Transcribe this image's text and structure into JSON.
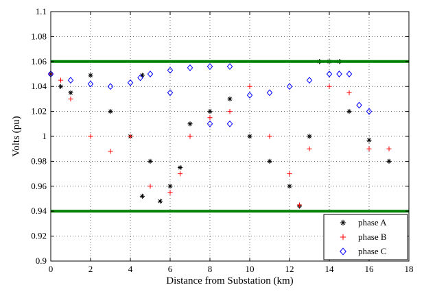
{
  "chart_data": {
    "type": "scatter",
    "title": "",
    "xlabel": "Distance from Substation (km)",
    "ylabel": "Volts (pu)",
    "xlim": [
      0,
      18
    ],
    "ylim": [
      0.9,
      1.1
    ],
    "xticks": [
      0,
      2,
      4,
      6,
      8,
      10,
      12,
      14,
      16,
      18
    ],
    "yticks": [
      0.9,
      0.92,
      0.94,
      0.96,
      0.98,
      1.0,
      1.02,
      1.04,
      1.06,
      1.08,
      1.1
    ],
    "xtick_labels": [
      "0",
      "2",
      "4",
      "6",
      "8",
      "10",
      "12",
      "14",
      "16",
      "18"
    ],
    "ytick_labels": [
      "0.9",
      "0.92",
      "0.94",
      "0.96",
      "0.98",
      "1",
      "1.02",
      "1.04",
      "1.06",
      "1.08",
      "1.1"
    ],
    "grid": true,
    "legend_position": "bottom-right",
    "reference_lines": [
      {
        "y": 1.06,
        "color": "#008000"
      },
      {
        "y": 0.94,
        "color": "#008000"
      }
    ],
    "series": [
      {
        "name": "phase A",
        "marker": "asterisk",
        "color": "#000000",
        "points": [
          [
            0.0,
            1.05
          ],
          [
            0.5,
            1.04
          ],
          [
            1.0,
            1.035
          ],
          [
            2.0,
            1.049
          ],
          [
            3.0,
            1.02
          ],
          [
            4.0,
            1.0
          ],
          [
            4.6,
            1.049
          ],
          [
            4.6,
            0.952
          ],
          [
            5.0,
            0.98
          ],
          [
            5.5,
            0.948
          ],
          [
            6.0,
            0.96
          ],
          [
            6.5,
            0.975
          ],
          [
            7.0,
            1.01
          ],
          [
            8.0,
            1.02
          ],
          [
            9.0,
            1.03
          ],
          [
            10.0,
            1.0
          ],
          [
            11.0,
            0.98
          ],
          [
            12.0,
            0.96
          ],
          [
            12.5,
            0.944
          ],
          [
            13.0,
            1.0
          ],
          [
            13.5,
            1.06
          ],
          [
            14.0,
            1.06
          ],
          [
            14.5,
            1.06
          ],
          [
            15.0,
            1.02
          ],
          [
            16.0,
            0.997
          ],
          [
            17.0,
            0.98
          ]
        ]
      },
      {
        "name": "phase B",
        "marker": "plus",
        "color": "#ff0000",
        "points": [
          [
            0.0,
            1.05
          ],
          [
            0.5,
            1.045
          ],
          [
            1.0,
            1.03
          ],
          [
            2.0,
            1.0
          ],
          [
            3.0,
            0.988
          ],
          [
            4.0,
            1.0
          ],
          [
            5.0,
            0.96
          ],
          [
            6.0,
            0.955
          ],
          [
            6.5,
            0.97
          ],
          [
            7.0,
            1.0
          ],
          [
            8.0,
            1.015
          ],
          [
            9.0,
            1.02
          ],
          [
            10.0,
            1.04
          ],
          [
            11.0,
            1.0
          ],
          [
            12.0,
            0.97
          ],
          [
            12.5,
            0.945
          ],
          [
            13.0,
            0.99
          ],
          [
            14.0,
            1.04
          ],
          [
            15.0,
            1.035
          ],
          [
            16.0,
            0.99
          ],
          [
            17.0,
            0.99
          ]
        ]
      },
      {
        "name": "phase C",
        "marker": "diamond",
        "color": "#0000ff",
        "points": [
          [
            0.0,
            1.05
          ],
          [
            1.0,
            1.045
          ],
          [
            2.0,
            1.042
          ],
          [
            3.0,
            1.04
          ],
          [
            4.0,
            1.043
          ],
          [
            4.5,
            1.047
          ],
          [
            5.0,
            1.05
          ],
          [
            6.0,
            1.053
          ],
          [
            7.0,
            1.055
          ],
          [
            8.0,
            1.056
          ],
          [
            9.0,
            1.056
          ],
          [
            6.0,
            1.035
          ],
          [
            8.0,
            1.01
          ],
          [
            9.0,
            1.01
          ],
          [
            10.0,
            1.033
          ],
          [
            11.0,
            1.035
          ],
          [
            12.0,
            1.04
          ],
          [
            13.0,
            1.045
          ],
          [
            14.0,
            1.05
          ],
          [
            14.5,
            1.05
          ],
          [
            15.0,
            1.05
          ],
          [
            15.5,
            1.025
          ],
          [
            16.0,
            1.02
          ]
        ]
      }
    ]
  }
}
